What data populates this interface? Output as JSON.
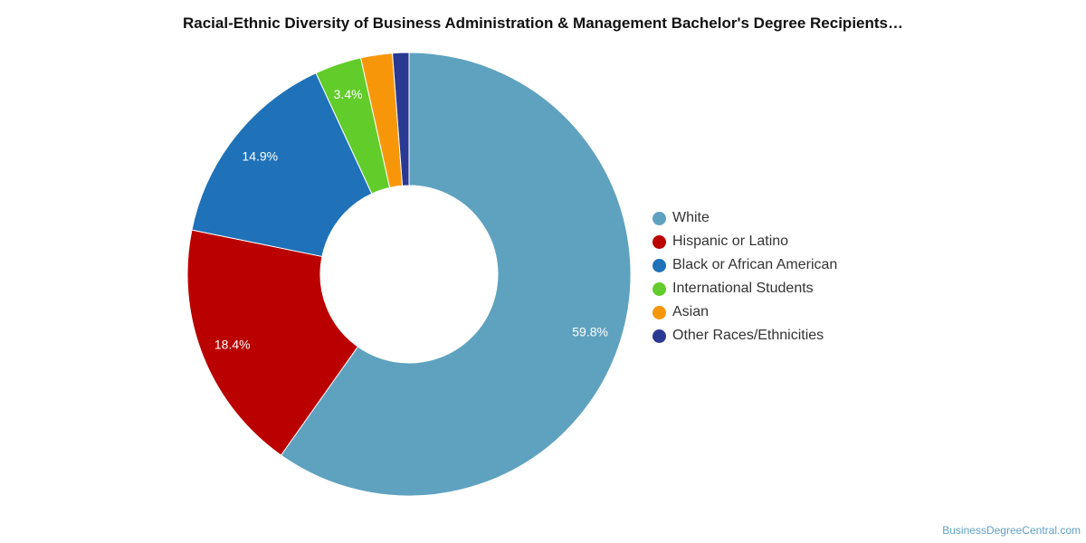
{
  "title": "Racial-Ethnic Diversity of Business Administration & Management Bachelor's Degree Recipients…",
  "credit": "BusinessDegreeCentral.com",
  "chart_data": {
    "type": "pie",
    "variant": "donut",
    "legend_position": "right",
    "slices": [
      {
        "label": "White",
        "value": 59.8,
        "data_label": "59.8%",
        "color": "#5fa2bf"
      },
      {
        "label": "Hispanic or Latino",
        "value": 18.4,
        "data_label": "18.4%",
        "color": "#bb0000"
      },
      {
        "label": "Black or African American",
        "value": 14.9,
        "data_label": "14.9%",
        "color": "#1f72b8"
      },
      {
        "label": "International Students",
        "value": 3.4,
        "data_label": "3.4%",
        "color": "#62cc2a"
      },
      {
        "label": "Asian",
        "value": 2.3,
        "data_label": "",
        "color": "#f8960a"
      },
      {
        "label": "Other Races/Ethnicities",
        "value": 1.2,
        "data_label": "",
        "color": "#2a3991"
      }
    ]
  }
}
